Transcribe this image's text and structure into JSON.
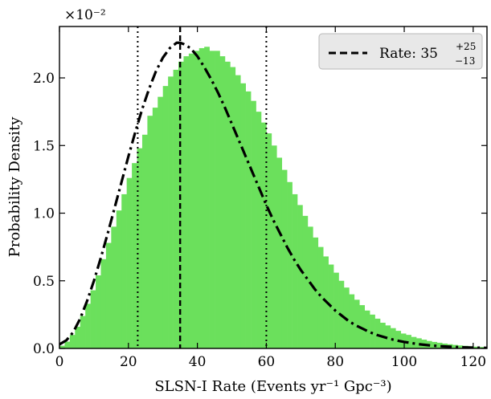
{
  "chart_data": {
    "type": "bar",
    "xlabel": "SLSN-I Rate (Events yr⁻¹ Gpc⁻³)",
    "ylabel": "Probability Density",
    "scale_multiplier": "×10⁻²",
    "xlim": [
      0,
      124
    ],
    "ylim": [
      0,
      2.38
    ],
    "xticks": [
      0,
      20,
      40,
      60,
      80,
      100,
      120
    ],
    "yticks": [
      0.0,
      0.5,
      1.0,
      1.5,
      2.0
    ],
    "ytick_labels": [
      "0.0",
      "0.5",
      "1.0",
      "1.5",
      "2.0"
    ],
    "grid": false,
    "legend_position": "top-right",
    "legend": {
      "label_text": "Rate: 35",
      "sup": "+25",
      "sub": "−13"
    },
    "histogram": {
      "color": "#6be05c",
      "bin_width": 1.5,
      "bin_start": 0,
      "values": [
        0.02,
        0.05,
        0.1,
        0.16,
        0.24,
        0.33,
        0.43,
        0.54,
        0.66,
        0.78,
        0.9,
        1.02,
        1.14,
        1.26,
        1.37,
        1.48,
        1.58,
        1.72,
        1.78,
        1.86,
        1.94,
        2.01,
        2.06,
        2.12,
        2.16,
        2.18,
        2.2,
        2.22,
        2.23,
        2.2,
        2.2,
        2.16,
        2.12,
        2.08,
        2.02,
        1.96,
        1.9,
        1.83,
        1.75,
        1.67,
        1.59,
        1.5,
        1.41,
        1.32,
        1.23,
        1.14,
        1.06,
        0.98,
        0.9,
        0.82,
        0.75,
        0.68,
        0.62,
        0.56,
        0.5,
        0.45,
        0.4,
        0.36,
        0.32,
        0.28,
        0.25,
        0.22,
        0.19,
        0.17,
        0.15,
        0.13,
        0.11,
        0.1,
        0.085,
        0.075,
        0.065,
        0.055,
        0.048,
        0.042,
        0.036,
        0.031,
        0.026,
        0.022,
        0.019,
        0.016,
        0.013,
        0.011,
        0.009
      ]
    },
    "fit_curve": {
      "x": [
        0,
        2,
        4,
        6,
        8,
        10,
        12,
        14,
        16,
        18,
        20,
        22,
        24,
        26,
        28,
        30,
        32,
        34,
        35,
        36,
        38,
        40,
        42,
        44,
        46,
        48,
        50,
        52,
        54,
        56,
        58,
        60,
        62,
        64,
        66,
        68,
        70,
        72,
        74,
        76,
        78,
        80,
        82,
        84,
        86,
        88,
        90,
        92,
        94,
        96,
        98,
        100,
        104,
        108,
        112,
        116,
        120,
        124
      ],
      "y": [
        0.03,
        0.06,
        0.12,
        0.22,
        0.35,
        0.5,
        0.67,
        0.85,
        1.04,
        1.23,
        1.42,
        1.6,
        1.77,
        1.92,
        2.05,
        2.15,
        2.22,
        2.26,
        2.26,
        2.25,
        2.22,
        2.16,
        2.08,
        1.99,
        1.89,
        1.78,
        1.66,
        1.54,
        1.42,
        1.3,
        1.18,
        1.06,
        0.95,
        0.85,
        0.75,
        0.66,
        0.58,
        0.51,
        0.44,
        0.38,
        0.33,
        0.28,
        0.24,
        0.2,
        0.17,
        0.145,
        0.12,
        0.1,
        0.085,
        0.07,
        0.058,
        0.048,
        0.032,
        0.021,
        0.014,
        0.009,
        0.006,
        0.004
      ]
    },
    "vlines": [
      {
        "x": 22.7,
        "style": "dotted"
      },
      {
        "x": 35,
        "style": "dashed"
      },
      {
        "x": 60,
        "style": "dotted"
      }
    ]
  }
}
